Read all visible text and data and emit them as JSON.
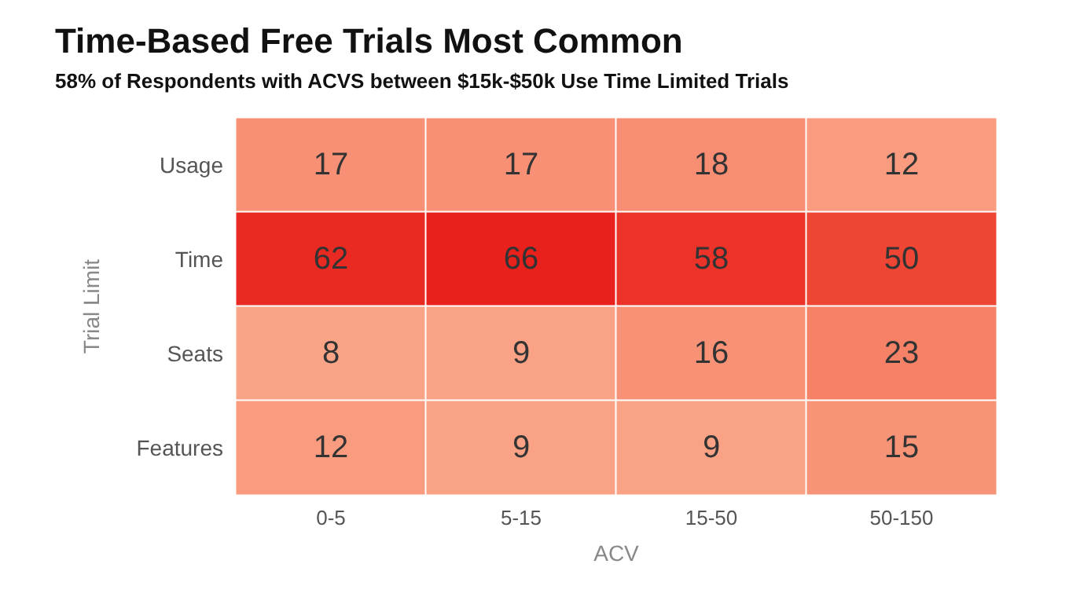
{
  "chart_data": {
    "type": "heatmap",
    "title": "Time-Based Free Trials Most Common",
    "subtitle": "58% of Respondents with ACVS between $15k-$50k Use Time Limited Trials",
    "xlabel": "ACV",
    "ylabel": "Trial Limit",
    "categories": [
      "0-5",
      "5-15",
      "15-50",
      "50-150"
    ],
    "y_categories": [
      "Usage",
      "Time",
      "Seats",
      "Features"
    ],
    "cells": [
      [
        17,
        17,
        18,
        12
      ],
      [
        62,
        66,
        58,
        50
      ],
      [
        8,
        9,
        16,
        23
      ],
      [
        12,
        9,
        9,
        15
      ]
    ],
    "data_labels": true
  }
}
